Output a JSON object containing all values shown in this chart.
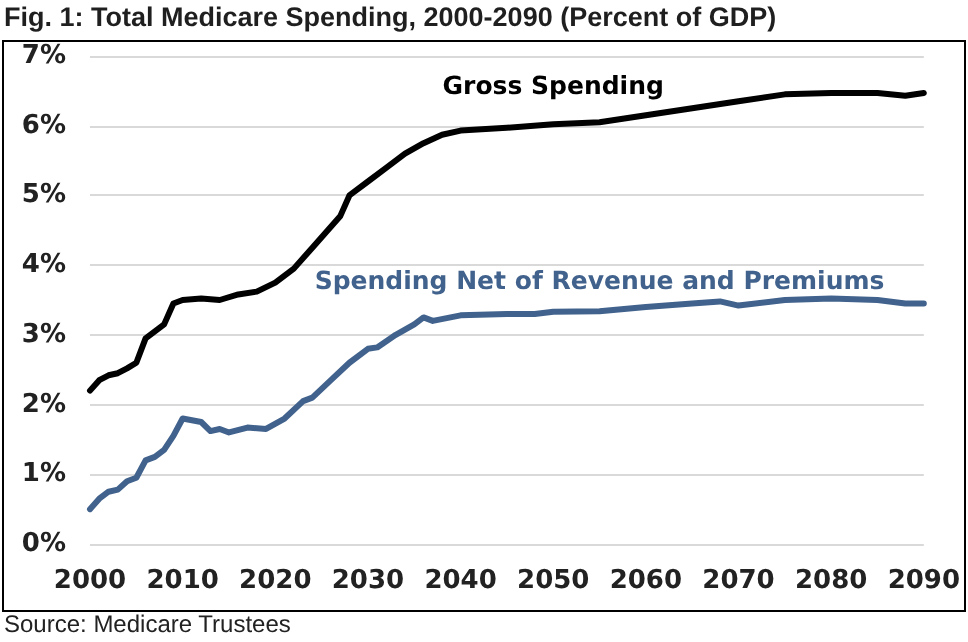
{
  "chart_data": {
    "type": "line",
    "title": "Fig. 1: Total Medicare Spending, 2000-2090 (Percent of GDP)",
    "annotations": [
      "Source: Medicare Trustees"
    ],
    "xlim": [
      2000,
      2090
    ],
    "xticks": [
      2000,
      2010,
      2020,
      2030,
      2040,
      2050,
      2060,
      2070,
      2080,
      2090
    ],
    "ylim": [
      0,
      7
    ],
    "yticks": [
      {
        "value": 0,
        "label": "0%"
      },
      {
        "value": 1,
        "label": "1%"
      },
      {
        "value": 2,
        "label": "2%"
      },
      {
        "value": 3,
        "label": "3%"
      },
      {
        "value": 4,
        "label": "4%"
      },
      {
        "value": 5,
        "label": "5%"
      },
      {
        "value": 6,
        "label": "6%"
      },
      {
        "value": 7,
        "label": "7%"
      }
    ],
    "grid": "y",
    "legend": false,
    "marker": "none",
    "line_style": "solid",
    "series": [
      {
        "name": "Gross Spending",
        "color": "#000000",
        "x": [
          2000,
          2001,
          2002,
          2003,
          2004,
          2005,
          2006,
          2007,
          2008,
          2009,
          2010,
          2012,
          2014,
          2016,
          2018,
          2020,
          2022,
          2024,
          2026,
          2027,
          2028,
          2030,
          2032,
          2034,
          2036,
          2038,
          2040,
          2045,
          2050,
          2055,
          2060,
          2065,
          2070,
          2075,
          2080,
          2085,
          2088,
          2090
        ],
        "values": [
          2.2,
          2.35,
          2.42,
          2.45,
          2.52,
          2.6,
          2.95,
          3.05,
          3.15,
          3.45,
          3.5,
          3.52,
          3.5,
          3.58,
          3.62,
          3.75,
          3.95,
          4.25,
          4.55,
          4.7,
          5.0,
          5.2,
          5.4,
          5.6,
          5.75,
          5.87,
          5.93,
          5.97,
          6.02,
          6.05,
          6.15,
          6.25,
          6.35,
          6.45,
          6.47,
          6.47,
          6.43,
          6.47
        ]
      },
      {
        "name": "Spending Net of Revenue and Premiums",
        "color": "#41628c",
        "x": [
          2000,
          2001,
          2002,
          2003,
          2004,
          2005,
          2006,
          2007,
          2008,
          2009,
          2010,
          2012,
          2013,
          2014,
          2015,
          2017,
          2019,
          2021,
          2023,
          2024,
          2026,
          2028,
          2030,
          2031,
          2033,
          2035,
          2036,
          2037,
          2040,
          2045,
          2048,
          2050,
          2055,
          2060,
          2065,
          2068,
          2070,
          2075,
          2080,
          2085,
          2088,
          2090
        ],
        "values": [
          0.5,
          0.65,
          0.75,
          0.78,
          0.9,
          0.95,
          1.2,
          1.25,
          1.35,
          1.55,
          1.8,
          1.75,
          1.62,
          1.65,
          1.6,
          1.67,
          1.65,
          1.8,
          2.05,
          2.1,
          2.35,
          2.6,
          2.8,
          2.82,
          3.0,
          3.15,
          3.25,
          3.2,
          3.28,
          3.3,
          3.3,
          3.33,
          3.34,
          3.4,
          3.45,
          3.48,
          3.42,
          3.5,
          3.52,
          3.5,
          3.45,
          3.45
        ]
      }
    ]
  }
}
